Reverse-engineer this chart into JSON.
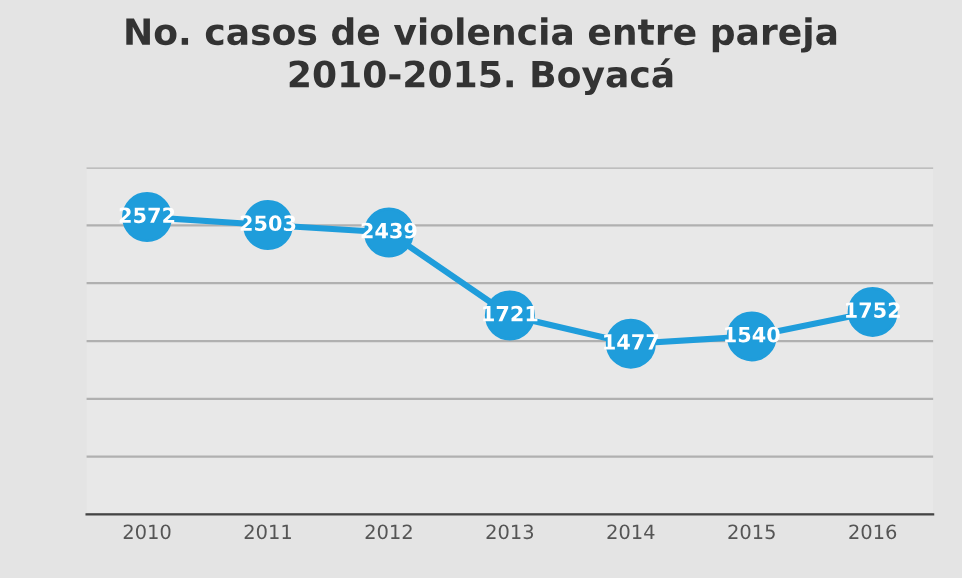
{
  "chart_data": {
    "type": "line",
    "title": "No. casos de violencia entre pareja\n2010-2015. Boyacá",
    "categories": [
      "2010",
      "2011",
      "2012",
      "2013",
      "2014",
      "2015",
      "2016"
    ],
    "series": [
      {
        "color": "#1f9ddb",
        "values": [
          2572,
          2503,
          2439,
          1721,
          1477,
          1540,
          1752
        ]
      }
    ],
    "ylim": [
      0,
      3000
    ],
    "yticks": [
      0,
      500,
      1000,
      1500,
      2000,
      2500,
      3000
    ],
    "tick_labels": "x",
    "grid": "y",
    "marker": "circle",
    "line_style": "solid",
    "data_labels": true
  }
}
